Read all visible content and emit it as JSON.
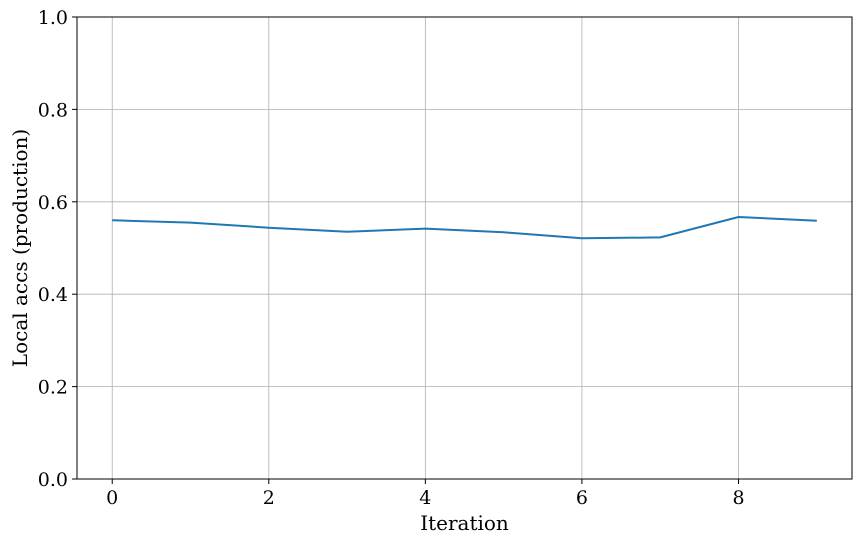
{
  "chart_data": {
    "type": "line",
    "title": "",
    "xlabel": "Iteration",
    "ylabel": "Local accs (production)",
    "x": [
      0,
      1,
      2,
      3,
      4,
      5,
      6,
      7,
      8,
      9
    ],
    "series": [
      {
        "values": [
          0.56,
          0.555,
          0.544,
          0.535,
          0.542,
          0.534,
          0.521,
          0.523,
          0.567,
          0.559
        ],
        "color": "#1f77b4"
      }
    ],
    "xlim": [
      -0.45,
      9.45
    ],
    "ylim": [
      0,
      1
    ],
    "xticks": [
      0,
      2,
      4,
      6,
      8
    ],
    "yticks": [
      0.0,
      0.2,
      0.4,
      0.6,
      0.8,
      1.0
    ],
    "xtick_labels": [
      "0",
      "2",
      "4",
      "6",
      "8"
    ],
    "ytick_labels": [
      "0.0",
      "0.2",
      "0.4",
      "0.6",
      "0.8",
      "1.0"
    ],
    "grid": true,
    "legend": false
  }
}
